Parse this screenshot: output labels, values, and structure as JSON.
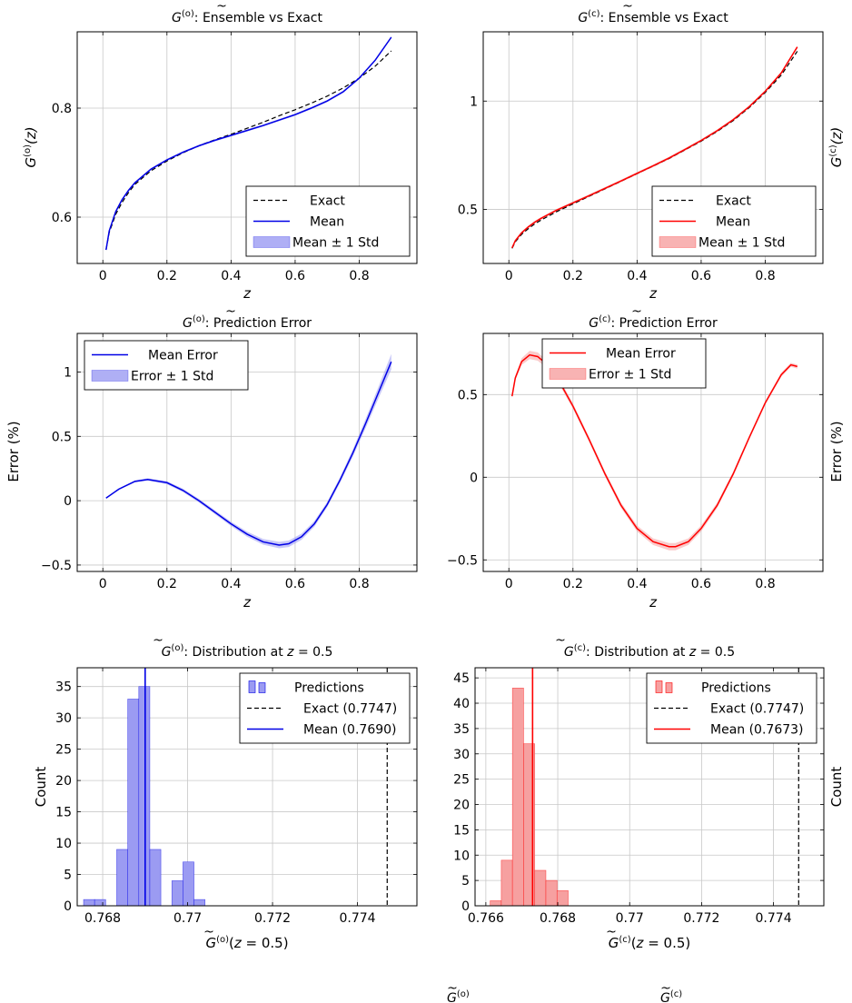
{
  "chart_data": [
    {
      "id": "p1",
      "type": "line",
      "title_head": "G",
      "title_sup": "(o)",
      "title_tail": ": Ensemble vs Exact",
      "xlabel": "z",
      "ylabel_head": "G",
      "ylabel_sup": "(o)",
      "ylabel_tail": "(z)",
      "xlim": [
        -0.08,
        0.98
      ],
      "ylim": [
        0.515,
        0.94
      ],
      "xticks": [
        {
          "v": 0,
          "label": "0"
        },
        {
          "v": 0.2,
          "label": "0.2"
        },
        {
          "v": 0.4,
          "label": "0.4"
        },
        {
          "v": 0.6,
          "label": "0.6"
        },
        {
          "v": 0.8,
          "label": "0.8"
        }
      ],
      "yticks": [
        {
          "v": 0.6,
          "label": "0.6"
        },
        {
          "v": 0.8,
          "label": "0.8"
        }
      ],
      "grid": true,
      "color": "#0000e6",
      "legend": {
        "position": "bottom-right",
        "items": [
          {
            "kind": "dash",
            "label": "Exact"
          },
          {
            "kind": "line",
            "label": "Mean"
          },
          {
            "kind": "band",
            "label": "Mean ± 1 Std"
          }
        ]
      },
      "series": [
        {
          "name": "Exact",
          "style": "dash",
          "x": [
            0.01,
            0.02,
            0.04,
            0.06,
            0.08,
            0.1,
            0.15,
            0.2,
            0.25,
            0.3,
            0.35,
            0.4,
            0.45,
            0.5,
            0.55,
            0.6,
            0.65,
            0.7,
            0.75,
            0.8,
            0.85,
            0.9
          ],
          "y": [
            0.54,
            0.572,
            0.605,
            0.627,
            0.645,
            0.66,
            0.685,
            0.703,
            0.718,
            0.731,
            0.742,
            0.752,
            0.763,
            0.774,
            0.786,
            0.797,
            0.809,
            0.822,
            0.837,
            0.855,
            0.877,
            0.905
          ]
        },
        {
          "name": "Mean",
          "style": "line",
          "x": [
            0.01,
            0.02,
            0.04,
            0.06,
            0.08,
            0.1,
            0.15,
            0.2,
            0.25,
            0.3,
            0.35,
            0.4,
            0.45,
            0.5,
            0.55,
            0.6,
            0.65,
            0.7,
            0.75,
            0.8,
            0.85,
            0.9
          ],
          "y": [
            0.54,
            0.575,
            0.61,
            0.632,
            0.649,
            0.663,
            0.688,
            0.705,
            0.719,
            0.731,
            0.741,
            0.75,
            0.759,
            0.768,
            0.778,
            0.788,
            0.8,
            0.813,
            0.83,
            0.855,
            0.888,
            0.93
          ]
        }
      ],
      "band_std": 0.002
    },
    {
      "id": "p2",
      "type": "line",
      "title_head": "G",
      "title_sup": "(c)",
      "title_tail": ": Ensemble vs Exact",
      "xlabel": "z",
      "ylabel_head": "G",
      "ylabel_sup": "(c)",
      "ylabel_tail": "(z)",
      "xlim": [
        -0.08,
        0.98
      ],
      "ylim": [
        0.25,
        1.32
      ],
      "xticks": [
        {
          "v": 0,
          "label": "0"
        },
        {
          "v": 0.2,
          "label": "0.2"
        },
        {
          "v": 0.4,
          "label": "0.4"
        },
        {
          "v": 0.6,
          "label": "0.6"
        },
        {
          "v": 0.8,
          "label": "0.8"
        }
      ],
      "yticks": [
        {
          "v": 0.5,
          "label": "0.5"
        },
        {
          "v": 1,
          "label": "1"
        }
      ],
      "grid": true,
      "color": "#ff0000",
      "legend": {
        "position": "bottom-right",
        "items": [
          {
            "kind": "dash",
            "label": "Exact"
          },
          {
            "kind": "line",
            "label": "Mean"
          },
          {
            "kind": "band",
            "label": "Mean ± 1 Std"
          }
        ]
      },
      "series": [
        {
          "name": "Exact",
          "style": "dash",
          "x": [
            0.01,
            0.02,
            0.04,
            0.06,
            0.08,
            0.1,
            0.15,
            0.2,
            0.25,
            0.3,
            0.35,
            0.4,
            0.45,
            0.5,
            0.55,
            0.6,
            0.65,
            0.7,
            0.75,
            0.8,
            0.85,
            0.9
          ],
          "y": [
            0.32,
            0.35,
            0.385,
            0.41,
            0.432,
            0.45,
            0.49,
            0.525,
            0.56,
            0.595,
            0.63,
            0.665,
            0.7,
            0.735,
            0.775,
            0.815,
            0.86,
            0.91,
            0.97,
            1.04,
            1.12,
            1.23
          ]
        },
        {
          "name": "Mean",
          "style": "line",
          "x": [
            0.01,
            0.02,
            0.04,
            0.06,
            0.08,
            0.1,
            0.15,
            0.2,
            0.25,
            0.3,
            0.35,
            0.4,
            0.45,
            0.5,
            0.55,
            0.6,
            0.65,
            0.7,
            0.75,
            0.8,
            0.85,
            0.9
          ],
          "y": [
            0.322,
            0.355,
            0.392,
            0.418,
            0.44,
            0.458,
            0.497,
            0.53,
            0.563,
            0.597,
            0.631,
            0.666,
            0.701,
            0.737,
            0.777,
            0.818,
            0.863,
            0.914,
            0.974,
            1.045,
            1.13,
            1.25
          ]
        }
      ],
      "band_std": 0.006
    },
    {
      "id": "p3",
      "type": "line",
      "title_head": "G",
      "title_sup": "(o)",
      "title_tail": ": Prediction Error",
      "xlabel": "z",
      "ylabel": "Error (%)",
      "xlim": [
        -0.08,
        0.98
      ],
      "ylim": [
        -0.55,
        1.3
      ],
      "xticks": [
        {
          "v": 0,
          "label": "0"
        },
        {
          "v": 0.2,
          "label": "0.2"
        },
        {
          "v": 0.4,
          "label": "0.4"
        },
        {
          "v": 0.6,
          "label": "0.6"
        },
        {
          "v": 0.8,
          "label": "0.8"
        }
      ],
      "yticks": [
        {
          "v": -0.5,
          "label": "−0.5"
        },
        {
          "v": 0,
          "label": "0"
        },
        {
          "v": 0.5,
          "label": "0.5"
        },
        {
          "v": 1,
          "label": "1"
        }
      ],
      "grid": true,
      "color": "#0000e6",
      "legend": {
        "position": "top-left",
        "items": [
          {
            "kind": "line",
            "label": "Mean Error"
          },
          {
            "kind": "band",
            "label": "Error ± 1 Std"
          }
        ]
      },
      "series": [
        {
          "name": "Mean Error",
          "style": "line",
          "x": [
            0.01,
            0.05,
            0.1,
            0.14,
            0.2,
            0.25,
            0.3,
            0.35,
            0.4,
            0.45,
            0.5,
            0.55,
            0.58,
            0.62,
            0.66,
            0.7,
            0.74,
            0.78,
            0.82,
            0.86,
            0.9
          ],
          "y": [
            0.02,
            0.09,
            0.15,
            0.165,
            0.14,
            0.08,
            0.0,
            -0.09,
            -0.18,
            -0.26,
            -0.32,
            -0.345,
            -0.335,
            -0.28,
            -0.18,
            -0.03,
            0.16,
            0.37,
            0.6,
            0.84,
            1.08
          ]
        }
      ],
      "band_std": [
        0.005,
        0.006,
        0.008,
        0.01,
        0.012,
        0.013,
        0.014,
        0.015,
        0.017,
        0.02,
        0.022,
        0.025,
        0.025,
        0.024,
        0.022,
        0.02,
        0.022,
        0.028,
        0.035,
        0.045,
        0.06
      ]
    },
    {
      "id": "p4",
      "type": "line",
      "title_head": "G",
      "title_sup": "(c)",
      "title_tail": ": Prediction Error",
      "xlabel": "z",
      "ylabel": "Error (%)",
      "xlim": [
        -0.08,
        0.98
      ],
      "ylim": [
        -0.57,
        0.87
      ],
      "xticks": [
        {
          "v": 0,
          "label": "0"
        },
        {
          "v": 0.2,
          "label": "0.2"
        },
        {
          "v": 0.4,
          "label": "0.4"
        },
        {
          "v": 0.6,
          "label": "0.6"
        },
        {
          "v": 0.8,
          "label": "0.8"
        }
      ],
      "yticks": [
        {
          "v": -0.5,
          "label": "−0.5"
        },
        {
          "v": 0,
          "label": "0"
        },
        {
          "v": 0.5,
          "label": "0.5"
        }
      ],
      "grid": true,
      "color": "#ff0000",
      "legend": {
        "position": "top-right",
        "items": [
          {
            "kind": "line",
            "label": "Mean Error"
          },
          {
            "kind": "band",
            "label": "Error ± 1 Std"
          }
        ]
      },
      "series": [
        {
          "name": "Mean Error",
          "style": "line",
          "x": [
            0.01,
            0.02,
            0.04,
            0.065,
            0.09,
            0.12,
            0.16,
            0.2,
            0.25,
            0.3,
            0.35,
            0.4,
            0.45,
            0.5,
            0.52,
            0.56,
            0.6,
            0.65,
            0.7,
            0.75,
            0.8,
            0.85,
            0.88,
            0.9
          ],
          "y": [
            0.49,
            0.6,
            0.7,
            0.74,
            0.73,
            0.68,
            0.57,
            0.43,
            0.23,
            0.02,
            -0.17,
            -0.31,
            -0.39,
            -0.42,
            -0.42,
            -0.39,
            -0.31,
            -0.17,
            0.02,
            0.24,
            0.45,
            0.62,
            0.68,
            0.67
          ]
        }
      ],
      "band_std": [
        0.01,
        0.014,
        0.02,
        0.025,
        0.025,
        0.022,
        0.018,
        0.016,
        0.015,
        0.015,
        0.016,
        0.018,
        0.02,
        0.022,
        0.022,
        0.02,
        0.018,
        0.016,
        0.014,
        0.013,
        0.012,
        0.012,
        0.012,
        0.012
      ]
    },
    {
      "id": "p5",
      "type": "bar",
      "title_head": "G",
      "title_sup": "(o)",
      "title_mid": ": Distribution at ",
      "title_z": "z",
      "title_tail": " = 0.5",
      "xlabel_head": "G",
      "xlabel_sup": "(o)",
      "xlabel_open": "(",
      "xlabel_z": "z",
      "xlabel_tail": " = 0.5)",
      "ylabel": "Count",
      "xlim": [
        0.7674,
        0.7754
      ],
      "ylim": [
        0,
        38
      ],
      "xticks": [
        {
          "v": 0.768,
          "label": "0.768"
        },
        {
          "v": 0.77,
          "label": "0.77"
        },
        {
          "v": 0.772,
          "label": "0.772"
        },
        {
          "v": 0.774,
          "label": "0.774"
        }
      ],
      "yticks": [
        {
          "v": 0,
          "label": "0"
        },
        {
          "v": 5,
          "label": "5"
        },
        {
          "v": 10,
          "label": "10"
        },
        {
          "v": 15,
          "label": "15"
        },
        {
          "v": 20,
          "label": "20"
        },
        {
          "v": 25,
          "label": "25"
        },
        {
          "v": 30,
          "label": "30"
        },
        {
          "v": 35,
          "label": "35"
        }
      ],
      "grid": true,
      "color": "#0000e6",
      "bar_fill": "#9b9bf2",
      "bin_edges": [
        0.76755,
        0.76781,
        0.76807,
        0.76833,
        0.76859,
        0.76885,
        0.76911,
        0.76937,
        0.76963,
        0.76989,
        0.77015,
        0.77041
      ],
      "counts": [
        1,
        1,
        0,
        9,
        33,
        35,
        9,
        0,
        4,
        7,
        1
      ],
      "exact": 0.7747,
      "mean": 0.769,
      "legend": {
        "position": "top-right",
        "items": [
          {
            "kind": "hist",
            "label": "Predictions"
          },
          {
            "kind": "dash",
            "label": "Exact (0.7747)"
          },
          {
            "kind": "line",
            "label": "Mean (0.7690)"
          }
        ]
      }
    },
    {
      "id": "p6",
      "type": "bar",
      "title_head": "G",
      "title_sup": "(c)",
      "title_mid": ": Distribution at ",
      "title_z": "z",
      "title_tail": " = 0.5",
      "xlabel_head": "G",
      "xlabel_sup": "(c)",
      "xlabel_open": "(",
      "xlabel_z": "z",
      "xlabel_tail": " = 0.5)",
      "ylabel": "Count",
      "xlim": [
        0.7657,
        0.7754
      ],
      "ylim": [
        0,
        47
      ],
      "xticks": [
        {
          "v": 0.766,
          "label": "0.766"
        },
        {
          "v": 0.768,
          "label": "0.768"
        },
        {
          "v": 0.77,
          "label": "0.77"
        },
        {
          "v": 0.772,
          "label": "0.772"
        },
        {
          "v": 0.774,
          "label": "0.774"
        }
      ],
      "yticks": [
        {
          "v": 0,
          "label": "0"
        },
        {
          "v": 5,
          "label": "5"
        },
        {
          "v": 10,
          "label": "10"
        },
        {
          "v": 15,
          "label": "15"
        },
        {
          "v": 20,
          "label": "20"
        },
        {
          "v": 25,
          "label": "25"
        },
        {
          "v": 30,
          "label": "30"
        },
        {
          "v": 35,
          "label": "35"
        },
        {
          "v": 40,
          "label": "40"
        },
        {
          "v": 45,
          "label": "45"
        }
      ],
      "grid": true,
      "color": "#ff0000",
      "bar_fill": "#f6a0a0",
      "bin_edges": [
        0.76612,
        0.76643,
        0.76674,
        0.76705,
        0.76736,
        0.76767,
        0.76798,
        0.76829,
        0.7686
      ],
      "counts": [
        1,
        9,
        43,
        32,
        7,
        5,
        3,
        0
      ],
      "exact": 0.7747,
      "mean": 0.7673,
      "legend": {
        "position": "top-right",
        "items": [
          {
            "kind": "hist",
            "label": "Predictions"
          },
          {
            "kind": "dash",
            "label": "Exact (0.7747)"
          },
          {
            "kind": "line",
            "label": "Mean (0.7673)"
          }
        ]
      }
    }
  ],
  "caption": {
    "g_left": "G",
    "sup_left": "(o)",
    "g_right": "G",
    "sup_right": "(c)"
  }
}
